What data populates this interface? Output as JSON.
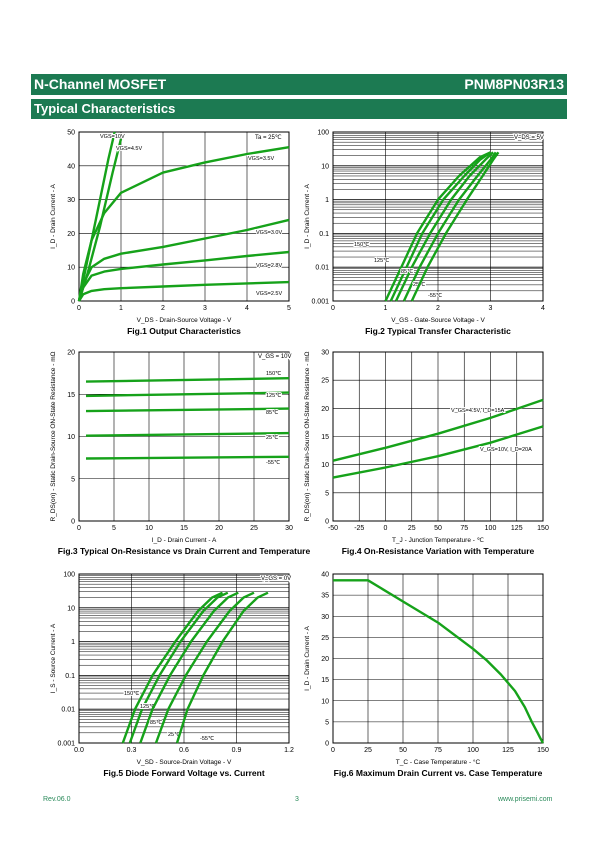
{
  "header": {
    "left": "N-Channel MOSFET",
    "right": "PNM8PN03R13"
  },
  "section": {
    "title": "Typical Characteristics"
  },
  "footer": {
    "rev": "Rev.06.0",
    "page": "3",
    "url": "www.prisemi.com"
  },
  "colors": {
    "brand": "#1c7a52",
    "curve": "#16a21a",
    "grid": "#000000"
  },
  "chart_data": [
    {
      "id": "fig1",
      "type": "line",
      "caption": "Fig.1 Output Characteristics",
      "xlabel": "V_DS - Drain-Source Voltage - V",
      "ylabel": "I_D - Drain Current - A",
      "xlim": [
        0,
        5
      ],
      "ylim": [
        0,
        50
      ],
      "xticks": [
        "0",
        "1",
        "2",
        "3",
        "4",
        "5"
      ],
      "yticks": [
        "0",
        "10",
        "20",
        "30",
        "40",
        "50"
      ],
      "annotations": [
        "Ta = 25℃"
      ],
      "series": [
        {
          "name": "VGS=10V",
          "x": [
            0,
            0.2,
            0.5,
            0.7,
            0.85
          ],
          "y": [
            0,
            12,
            30,
            42,
            50
          ]
        },
        {
          "name": "VGS=4.5V",
          "x": [
            0,
            0.2,
            0.5,
            0.8,
            1.0
          ],
          "y": [
            0,
            8,
            22,
            38,
            48
          ]
        },
        {
          "name": "VGS=3.5V",
          "x": [
            0,
            0.1,
            0.3,
            0.6,
            1,
            2,
            3,
            4,
            5
          ],
          "y": [
            0,
            8,
            18,
            26,
            32,
            38,
            41,
            43.5,
            45.5
          ]
        },
        {
          "name": "VGS=3.0V",
          "x": [
            0,
            0.1,
            0.3,
            0.6,
            1,
            2,
            3,
            4,
            5
          ],
          "y": [
            0,
            5,
            10,
            12.5,
            14,
            16,
            18.5,
            21,
            24
          ]
        },
        {
          "name": "VGS=2.8V",
          "x": [
            0,
            0.1,
            0.3,
            0.6,
            1,
            2,
            3,
            4,
            5
          ],
          "y": [
            0,
            4,
            7.5,
            8.7,
            9.5,
            10.8,
            12,
            13.3,
            14.5
          ]
        },
        {
          "name": "VGS=2.5V",
          "x": [
            0,
            0.1,
            0.3,
            0.6,
            1,
            2,
            3,
            4,
            5
          ],
          "y": [
            0,
            2,
            3,
            3.5,
            3.8,
            4.3,
            4.8,
            5.2,
            5.6
          ]
        }
      ]
    },
    {
      "id": "fig2",
      "type": "line",
      "caption": "Fig.2 Typical Transfer Characteristic",
      "xlabel": "V_GS - Gate-Source Voltage - V",
      "ylabel": "I_D - Drain Current - A",
      "xlim": [
        0,
        4
      ],
      "ylim": [
        0.001,
        100
      ],
      "yscale": "log",
      "xticks": [
        "0",
        "1",
        "2",
        "3",
        "4"
      ],
      "yticks": [
        "0.001",
        "0.01",
        "0.1",
        "1",
        "10",
        "100"
      ],
      "annotations": [
        "V_DS = 5V"
      ],
      "series": [
        {
          "name": "150℃",
          "x": [
            1.0,
            1.3,
            1.6,
            2.0,
            2.4,
            2.8,
            3.0
          ],
          "y": [
            0.001,
            0.01,
            0.1,
            1,
            5,
            18,
            25
          ]
        },
        {
          "name": "125℃",
          "x": [
            1.1,
            1.4,
            1.7,
            2.1,
            2.5,
            2.8,
            3.0
          ],
          "y": [
            0.001,
            0.01,
            0.1,
            1,
            5,
            15,
            25
          ]
        },
        {
          "name": "85℃",
          "x": [
            1.2,
            1.5,
            1.85,
            2.25,
            2.6,
            2.9,
            3.05
          ],
          "y": [
            0.001,
            0.01,
            0.1,
            1,
            5,
            15,
            25
          ]
        },
        {
          "name": "25℃",
          "x": [
            1.35,
            1.65,
            2.0,
            2.4,
            2.75,
            3.0,
            3.1
          ],
          "y": [
            0.001,
            0.01,
            0.1,
            1,
            5,
            15,
            25
          ]
        },
        {
          "name": "-55℃",
          "x": [
            1.5,
            1.8,
            2.15,
            2.55,
            2.85,
            3.05,
            3.15
          ],
          "y": [
            0.001,
            0.01,
            0.1,
            1,
            5,
            15,
            25
          ]
        }
      ]
    },
    {
      "id": "fig3",
      "type": "line",
      "caption": "Fig.3 Typical On-Resistance  vs Drain Current and Temperature",
      "xlabel": "I_D - Drain Current - A",
      "ylabel": "R_DS(on) - Static Drain-Source ON-State Resistance - mΩ",
      "xlim": [
        0,
        30
      ],
      "ylim": [
        0,
        20
      ],
      "xticks": [
        "0",
        "5",
        "10",
        "15",
        "20",
        "25",
        "30"
      ],
      "yticks": [
        "0",
        "5",
        "10",
        "15",
        "20"
      ],
      "annotations": [
        "V_GS = 10V"
      ],
      "series": [
        {
          "name": "150℃",
          "x": [
            1,
            30
          ],
          "y": [
            16.5,
            16.9
          ]
        },
        {
          "name": "125℃",
          "x": [
            1,
            30
          ],
          "y": [
            14.8,
            15.2
          ]
        },
        {
          "name": "85℃",
          "x": [
            1,
            30
          ],
          "y": [
            13.0,
            13.3
          ]
        },
        {
          "name": "25℃",
          "x": [
            1,
            30
          ],
          "y": [
            10.1,
            10.4
          ]
        },
        {
          "name": "-55℃",
          "x": [
            1,
            30
          ],
          "y": [
            7.4,
            7.6
          ]
        }
      ]
    },
    {
      "id": "fig4",
      "type": "line",
      "caption": "Fig.4 On-Resistance Variation with Temperature",
      "xlabel": "T_J - Junction Temperature - ℃",
      "ylabel": "R_DS(on) - Static Drain-Source ON-State Resistance - mΩ",
      "xlim": [
        -50,
        150
      ],
      "ylim": [
        0,
        30
      ],
      "xticks": [
        "-50",
        "-25",
        "0",
        "25",
        "50",
        "75",
        "100",
        "125",
        "150"
      ],
      "yticks": [
        "0",
        "5",
        "10",
        "15",
        "20",
        "25",
        "30"
      ],
      "series": [
        {
          "name": "V_GS=4.5V, I_D=15A",
          "x": [
            -50,
            0,
            50,
            100,
            150
          ],
          "y": [
            10.7,
            13,
            15.5,
            18.3,
            21.5
          ]
        },
        {
          "name": "V_GS=10V, I_D=20A",
          "x": [
            -50,
            0,
            50,
            100,
            150
          ],
          "y": [
            7.7,
            9.5,
            11.5,
            13.9,
            16.8
          ]
        }
      ]
    },
    {
      "id": "fig5",
      "type": "line",
      "caption": "Fig.5 Diode Forward Voltage vs. Current",
      "xlabel": "V_SD - Source-Drain Voltage - V",
      "ylabel": "I_S - Source Current - A",
      "xlim": [
        0,
        1.2
      ],
      "ylim": [
        0.001,
        100
      ],
      "yscale": "log",
      "xticks": [
        "0.0",
        "0.3",
        "0.6",
        "0.9",
        "1.2"
      ],
      "yticks": [
        "0.001",
        "0.01",
        "0.1",
        "1",
        "10",
        "100"
      ],
      "annotations": [
        "V_GS = 0V"
      ],
      "series": [
        {
          "name": "150℃",
          "x": [
            0.25,
            0.32,
            0.42,
            0.55,
            0.68,
            0.76,
            0.82
          ],
          "y": [
            0.001,
            0.01,
            0.1,
            1,
            8,
            20,
            28
          ]
        },
        {
          "name": "125℃",
          "x": [
            0.29,
            0.36,
            0.46,
            0.58,
            0.71,
            0.79,
            0.85
          ],
          "y": [
            0.001,
            0.01,
            0.1,
            1,
            8,
            20,
            28
          ]
        },
        {
          "name": "85℃",
          "x": [
            0.35,
            0.42,
            0.52,
            0.64,
            0.77,
            0.85,
            0.91
          ],
          "y": [
            0.001,
            0.01,
            0.1,
            1,
            8,
            20,
            28
          ]
        },
        {
          "name": "25℃",
          "x": [
            0.44,
            0.51,
            0.61,
            0.73,
            0.86,
            0.94,
            1.0
          ],
          "y": [
            0.001,
            0.01,
            0.1,
            1,
            8,
            20,
            28
          ]
        },
        {
          "name": "-55℃",
          "x": [
            0.56,
            0.62,
            0.71,
            0.82,
            0.94,
            1.02,
            1.08
          ],
          "y": [
            0.001,
            0.01,
            0.1,
            1,
            8,
            20,
            28
          ]
        }
      ]
    },
    {
      "id": "fig6",
      "type": "line",
      "caption": "Fig.6 Maximum Drain Current vs. Case Temperature",
      "xlabel": "T_C - Case Temperature - °C",
      "ylabel": "I_D - Drain Current - A",
      "xlim": [
        0,
        150
      ],
      "ylim": [
        0,
        40
      ],
      "xticks": [
        "0",
        "25",
        "50",
        "75",
        "100",
        "125",
        "150"
      ],
      "yticks": [
        "0",
        "5",
        "10",
        "15",
        "20",
        "25",
        "30",
        "35",
        "40"
      ],
      "series": [
        {
          "name": "",
          "x": [
            0,
            25,
            50,
            75,
            100,
            110,
            120,
            130,
            137,
            142,
            146,
            148,
            150
          ],
          "y": [
            38.5,
            38.5,
            33.5,
            28.5,
            22.3,
            19.5,
            16.2,
            12.3,
            8.5,
            5,
            2.5,
            1.2,
            0
          ]
        }
      ]
    }
  ]
}
